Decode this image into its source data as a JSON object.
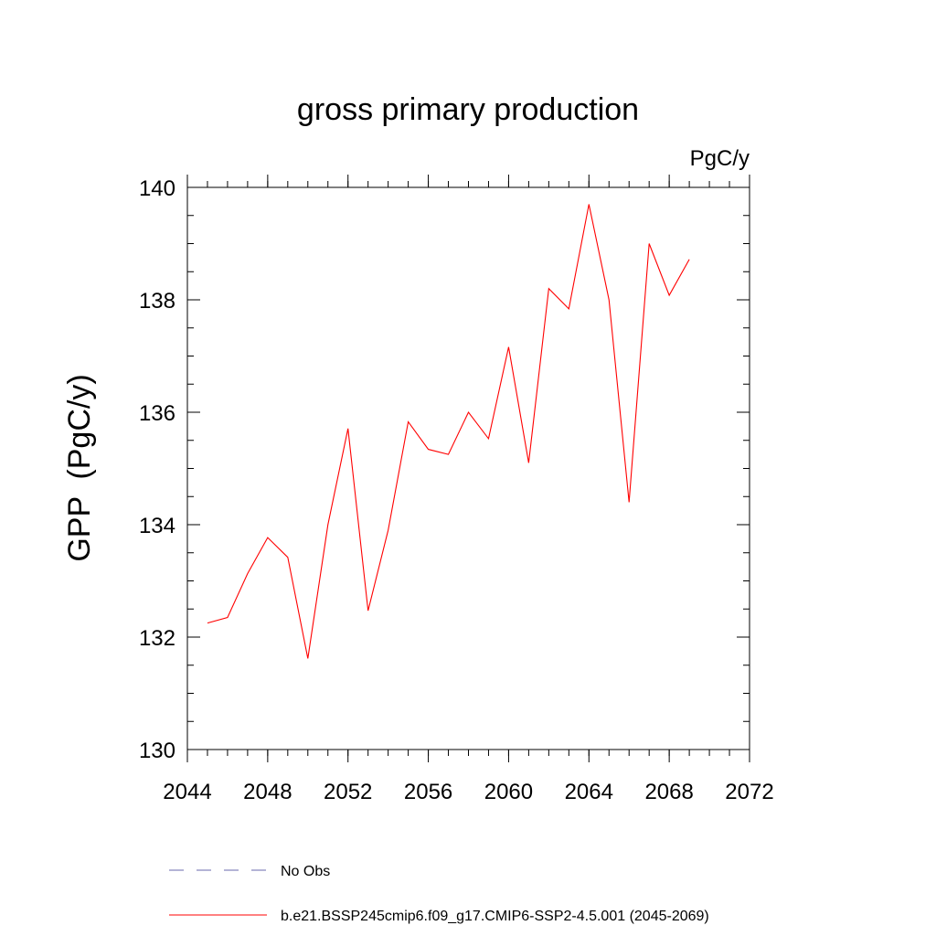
{
  "chart_data": {
    "type": "line",
    "title": "gross primary production",
    "units_label": "PgC/y",
    "ylabel": "GPP  (PgC/y)",
    "xlabel": "",
    "xlim": [
      2044,
      2072
    ],
    "ylim": [
      130,
      140
    ],
    "x_ticks": [
      2044,
      2048,
      2052,
      2056,
      2060,
      2064,
      2068,
      2072
    ],
    "y_ticks": [
      130,
      132,
      134,
      136,
      138,
      140
    ],
    "x_tick_labels": [
      "2044",
      "2048",
      "2052",
      "2056",
      "2060",
      "2064",
      "2068",
      "2072"
    ],
    "y_tick_labels": [
      "130",
      "132",
      "134",
      "136",
      "138",
      "140"
    ],
    "grid": false,
    "legend_position": "bottom",
    "series": [
      {
        "name": "b.e21.BSSP245cmip6.f09_g17.CMIP6-SSP2-4.5.001 (2045-2069)",
        "color": "#ff0000",
        "style": "solid",
        "x": [
          2045,
          2046,
          2047,
          2048,
          2049,
          2050,
          2051,
          2052,
          2053,
          2054,
          2055,
          2056,
          2057,
          2058,
          2059,
          2060,
          2061,
          2062,
          2063,
          2064,
          2065,
          2066,
          2067,
          2068,
          2069
        ],
        "y": [
          132.25,
          132.35,
          133.13,
          133.77,
          133.42,
          131.62,
          134.0,
          135.71,
          132.47,
          133.9,
          135.83,
          135.34,
          135.25,
          136.0,
          135.53,
          137.16,
          135.1,
          138.2,
          137.84,
          139.7,
          138.0,
          134.4,
          139.0,
          138.08,
          138.72
        ]
      }
    ],
    "legend": [
      {
        "label": "No Obs",
        "color": "#6a6aae",
        "style": "dashed"
      },
      {
        "label": "b.e21.BSSP245cmip6.f09_g17.CMIP6-SSP2-4.5.001 (2045-2069)",
        "color": "#ff0000",
        "style": "solid"
      }
    ]
  }
}
